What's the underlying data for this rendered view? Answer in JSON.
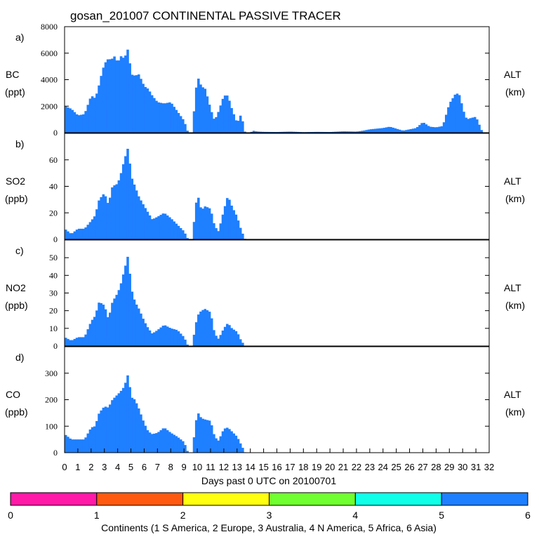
{
  "chart_data": {
    "type": "bar",
    "title": "gosan_201007 CONTINENTAL PASSIVE TRACER",
    "xlabel": "Days past 0 UTC on 20100701",
    "xlim": [
      0,
      32
    ],
    "x_ticks": [
      "0",
      "1",
      "2",
      "3",
      "4",
      "5",
      "6",
      "7",
      "8",
      "9",
      "10",
      "11",
      "12",
      "13",
      "14",
      "15",
      "16",
      "17",
      "18",
      "19",
      "20",
      "21",
      "22",
      "23",
      "24",
      "25",
      "26",
      "27",
      "28",
      "29",
      "30",
      "31",
      "32"
    ],
    "series_color": "#1e7fff",
    "colorbar": {
      "label": "Continents (1 S America, 2 Europe, 3 Australia, 4 N America, 5 Africa, 6 Asia)",
      "ticks": [
        "0",
        "1",
        "2",
        "3",
        "4",
        "5",
        "6"
      ],
      "colors": [
        "#ff1aa8",
        "#ff5a10",
        "#ffff10",
        "#70ff30",
        "#10ffe8",
        "#1e7fff"
      ]
    },
    "panels": [
      {
        "letter": "a)",
        "ylabel": "BC",
        "unit": "(ppt)",
        "right_label": "ALT",
        "right_unit": "(km)",
        "ylim": [
          0,
          8000
        ],
        "yticks": [
          "0",
          "2000",
          "4000",
          "6000",
          "8000"
        ],
        "keys": [
          0,
          0.5,
          1,
          1.5,
          2,
          2.3,
          2.5,
          2.8,
          3,
          3.3,
          3.5,
          3.8,
          4,
          4.2,
          4.5,
          4.8,
          5,
          5.3,
          5.6,
          6,
          6.3,
          6.6,
          7,
          7.5,
          8,
          8.5,
          9,
          9.3,
          9.6,
          10,
          10.3,
          10.6,
          11,
          11.3,
          11.6,
          12,
          12.3,
          12.6,
          13,
          13.3,
          13.6,
          14,
          14.2,
          14.4,
          14.6,
          15,
          16,
          17,
          18,
          19,
          20,
          21,
          22,
          22.5,
          23,
          23.5,
          24,
          24.5,
          25,
          25.5,
          26,
          26.5,
          27,
          27.5,
          28,
          28.5,
          29,
          29.5,
          29.8,
          30,
          30.3,
          30.6,
          31,
          31.5
        ],
        "vals": [
          2000,
          1800,
          1300,
          1400,
          2800,
          2600,
          3200,
          4500,
          5200,
          5600,
          5500,
          5800,
          5200,
          5800,
          5600,
          6400,
          4400,
          4300,
          4400,
          3500,
          3300,
          2800,
          2300,
          2200,
          2300,
          1600,
          900,
          0,
          0,
          4300,
          3500,
          3300,
          1800,
          900,
          1600,
          2800,
          2800,
          1800,
          700,
          1400,
          0,
          0,
          150,
          100,
          80,
          60,
          50,
          80,
          40,
          60,
          50,
          100,
          80,
          150,
          250,
          300,
          350,
          450,
          300,
          150,
          250,
          350,
          800,
          450,
          400,
          500,
          2200,
          3000,
          2800,
          1800,
          1000,
          1100,
          1200,
          0
        ]
      },
      {
        "letter": "b)",
        "ylabel": "SO2",
        "unit": "(ppb)",
        "right_label": "ALT",
        "right_unit": "(km)",
        "ylim": [
          0,
          80
        ],
        "yticks": [
          "0",
          "20",
          "40",
          "60"
        ],
        "keys": [
          0,
          0.5,
          1,
          1.5,
          2,
          2.3,
          2.6,
          3,
          3.3,
          3.6,
          4,
          4.2,
          4.5,
          4.8,
          5,
          5.3,
          5.6,
          6,
          6.3,
          6.6,
          7,
          7.5,
          8,
          8.5,
          9,
          9.3,
          9.6,
          10,
          10.3,
          10.6,
          11,
          11.3,
          11.6,
          12,
          12.3,
          12.6,
          13,
          13.3,
          13.6,
          14,
          14.3,
          14.6,
          15,
          20,
          22,
          22.5,
          23,
          23.5,
          24,
          24.5,
          25,
          25.5,
          26,
          26.5,
          27,
          27.5,
          28,
          28.5,
          29,
          29.3,
          29.6,
          30,
          30.3,
          30.6,
          31,
          31.5
        ],
        "vals": [
          8,
          4,
          8,
          8,
          14,
          18,
          30,
          35,
          26,
          40,
          42,
          48,
          60,
          70,
          48,
          40,
          32,
          25,
          20,
          15,
          17,
          20,
          16,
          11,
          6,
          0,
          0,
          35,
          22,
          25,
          23,
          10,
          6,
          22,
          33,
          25,
          17,
          7,
          0,
          0,
          0,
          0,
          0,
          0,
          0,
          0,
          0,
          0,
          0,
          0,
          0,
          0,
          0,
          0,
          0,
          0,
          0,
          0,
          0,
          0,
          0,
          0,
          0,
          0,
          0,
          0
        ]
      },
      {
        "letter": "c)",
        "ylabel": "NO2",
        "unit": "(ppb)",
        "right_label": "ALT",
        "right_unit": "(km)",
        "ylim": [
          0,
          60
        ],
        "yticks": [
          "0",
          "10",
          "20",
          "30",
          "40",
          "50"
        ],
        "keys": [
          0,
          0.5,
          1,
          1.5,
          2,
          2.3,
          2.6,
          3,
          3.3,
          3.6,
          4,
          4.2,
          4.5,
          4.8,
          5,
          5.3,
          5.6,
          6,
          6.3,
          6.6,
          7,
          7.5,
          8,
          8.5,
          9,
          9.3,
          9.6,
          10,
          10.3,
          10.6,
          11,
          11.3,
          11.6,
          12,
          12.3,
          12.6,
          13,
          13.3,
          13.6,
          14,
          14.3,
          14.6,
          15,
          20,
          22,
          22.5,
          23,
          23.5,
          24,
          24.5,
          25,
          25.5,
          26,
          26.5,
          27,
          27.5,
          28,
          28.5,
          29,
          29.3,
          29.6,
          30,
          30.3,
          30.6,
          31,
          31.5
        ],
        "vals": [
          5,
          3,
          5,
          5,
          14,
          17,
          25,
          23,
          15,
          25,
          30,
          34,
          43,
          52,
          33,
          25,
          21,
          14,
          10,
          7,
          9,
          12,
          10,
          9,
          5,
          0,
          0,
          17,
          20,
          21,
          19,
          7,
          4,
          10,
          13,
          10,
          8,
          3,
          0,
          0,
          0,
          0,
          0,
          0,
          0,
          0,
          0,
          0,
          0,
          0,
          0,
          0,
          0,
          0,
          0,
          0,
          0,
          0,
          0,
          0,
          0,
          0,
          0,
          0,
          0,
          0
        ]
      },
      {
        "letter": "d)",
        "ylabel": "CO",
        "unit": "(ppb)",
        "right_label": "ALT",
        "right_unit": "(km)",
        "ylim": [
          0,
          400
        ],
        "yticks": [
          "0",
          "100",
          "200",
          "300"
        ],
        "keys": [
          0,
          0.5,
          1,
          1.5,
          2,
          2.3,
          2.6,
          3,
          3.3,
          3.6,
          4,
          4.2,
          4.5,
          4.8,
          5,
          5.3,
          5.6,
          6,
          6.3,
          6.6,
          7,
          7.5,
          8,
          8.5,
          9,
          9.3,
          9.6,
          10,
          10.3,
          10.6,
          11,
          11.3,
          11.6,
          12,
          12.3,
          12.6,
          13,
          13.3,
          13.6,
          14,
          14.3,
          14.6,
          15,
          20,
          22,
          22.5,
          23,
          23.5,
          24,
          24.5,
          25,
          25.5,
          26,
          26.5,
          27,
          27.5,
          28,
          28.5,
          29,
          29.3,
          29.6,
          30,
          30.3,
          30.6,
          31,
          31.5
        ],
        "vals": [
          70,
          50,
          50,
          50,
          95,
          100,
          150,
          175,
          170,
          200,
          220,
          230,
          250,
          300,
          210,
          200,
          165,
          110,
          80,
          70,
          75,
          95,
          75,
          60,
          40,
          0,
          0,
          155,
          130,
          125,
          120,
          60,
          45,
          90,
          95,
          80,
          60,
          30,
          0,
          0,
          0,
          0,
          0,
          0,
          0,
          0,
          0,
          0,
          0,
          0,
          0,
          0,
          0,
          0,
          0,
          0,
          0,
          0,
          0,
          0,
          0,
          0,
          0,
          0,
          0,
          0
        ]
      }
    ]
  }
}
